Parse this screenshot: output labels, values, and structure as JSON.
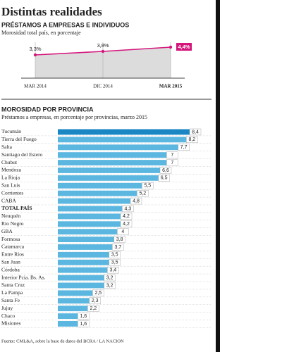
{
  "title": "Distintas realidades",
  "source": "Fuente: CML&A, sobre la base de datos del BCRA / LA NACION",
  "chart_data": [
    {
      "type": "area",
      "title": "PRÉSTAMOS A EMPRESAS E INDIVIDUOS",
      "subtitle": "Morosidad total país, en porcentaje",
      "categories": [
        "MAR 2014",
        "DIC 2014",
        "MAR 2015"
      ],
      "values": [
        3.3,
        3.8,
        4.4
      ],
      "value_labels": [
        "3,3%",
        "3,8%",
        "4,4%"
      ],
      "color": "#d4167c",
      "area_color": "#dcdcdc"
    },
    {
      "type": "barh",
      "title": "MOROSIDAD POR PROVINCIA",
      "subtitle": "Préstamos a empresas, en porcentaje por provincias, marzo 2015",
      "categories": [
        "Tucumán",
        "Tierra del Fuego",
        "Salta",
        "Santiago del Estero",
        "Chubut",
        "Mendoza",
        "La Rioja",
        "San Luis",
        "Corrientes",
        "CABA",
        "TOTAL PAÍS",
        "Neuquén",
        "Río Negro",
        "GBA",
        "Formosa",
        "Catamarca",
        "Entre Ríos",
        "San Juan",
        "Córdoba",
        "Interior Pcia. Bs. As.",
        "Santa Cruz",
        "La Pampa",
        "Santa Fe",
        "Jujuy",
        "Chaco",
        "Misiones"
      ],
      "values": [
        8.4,
        8.2,
        7.7,
        7,
        7,
        6.6,
        6.5,
        5.5,
        5.2,
        4.8,
        4.3,
        4.2,
        4.2,
        4,
        3.8,
        3.7,
        3.5,
        3.5,
        3.4,
        3.2,
        3.2,
        2.5,
        2.3,
        2.2,
        1.6,
        1.6
      ],
      "value_labels": [
        "8,4",
        "8,2",
        "7,7",
        "7",
        "7",
        "6,6",
        "6,5",
        "5,5",
        "5,2",
        "4,8",
        "4,3",
        "4,2",
        "4,2",
        "4",
        "3,8",
        "3,7",
        "3,5",
        "3,5",
        "3,4",
        "3,2",
        "3,2",
        "2,5",
        "2,3",
        "2,2",
        "1,6",
        "1,6"
      ],
      "color": "#5cb7e0",
      "highlight_color": "#1a86c4"
    }
  ]
}
